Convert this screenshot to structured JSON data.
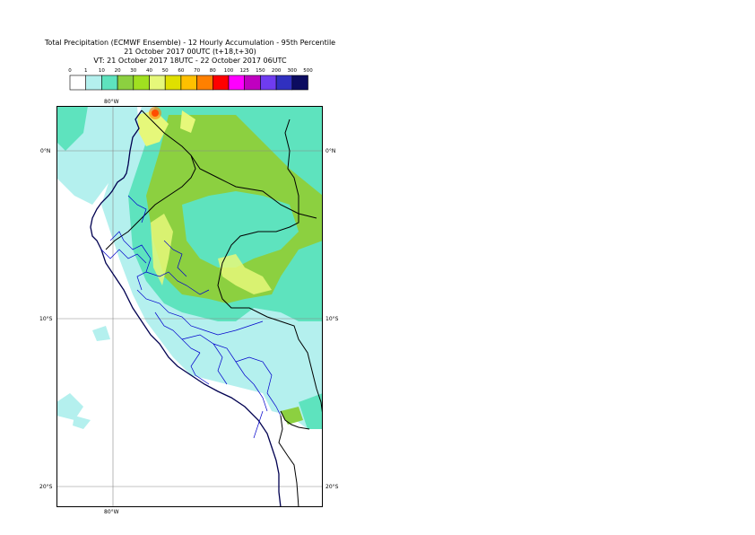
{
  "title": {
    "line1": "Total Precipitation (ECMWF Ensemble) - 12 Hourly Accumulation - 95th Percentile",
    "line2": "21 October 2017 00UTC (t+18,t+30)",
    "line3": "VT: 21 October 2017 18UTC - 22 October 2017 06UTC"
  },
  "legend": {
    "labels": [
      "0",
      "1",
      "10",
      "20",
      "30",
      "40",
      "50",
      "60",
      "70",
      "80",
      "100",
      "125",
      "150",
      "200",
      "300",
      "500"
    ],
    "colors": [
      "#ffffff",
      "#b4f0ee",
      "#5ee3be",
      "#8cd040",
      "#a0e020",
      "#e6f87a",
      "#e0e000",
      "#ffc000",
      "#ff8000",
      "#ff0000",
      "#ff00ff",
      "#c000c0",
      "#6f3cf0",
      "#3030c0",
      "#0c0c60"
    ]
  },
  "map": {
    "lon_labels": {
      "top": "80°W",
      "bottom": "80°W"
    },
    "lat_labels": [
      "0°N",
      "10°S",
      "20°S"
    ],
    "colors": {
      "light_cyan": "#b4f0ee",
      "turquoise": "#5ee3be",
      "green": "#8cd040",
      "light_yellow": "#e6f87a",
      "red": "#ff0000",
      "country_border": "#000000",
      "region_border": "#0000cc",
      "coastline": "#000050"
    }
  }
}
